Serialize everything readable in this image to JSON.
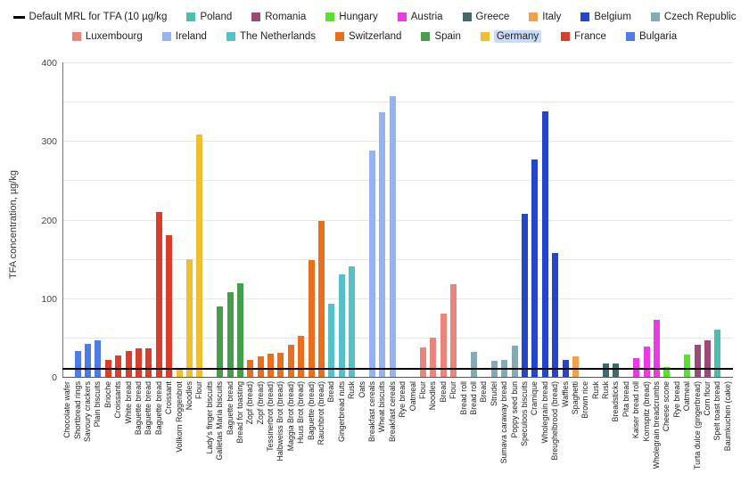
{
  "chart_data": {
    "type": "bar",
    "title": "",
    "xlabel": "",
    "ylabel": "TFA concentration, µg/kg",
    "ylim": [
      0,
      400
    ],
    "yticks": [
      0,
      100,
      200,
      300,
      400
    ],
    "grid": "horizontal gridlines every 50 units",
    "legend_position": "top, two rows",
    "mrl_line": {
      "label": "Default MRL for TFA (10 µg/kg",
      "value": 10,
      "color": "#000000"
    },
    "highlighted_legend_item": "Germany",
    "legend_row1": [
      "Poland",
      "Romania",
      "Hungary",
      "Austria",
      "Greece",
      "Italy",
      "Belgium",
      "Czech Republic"
    ],
    "legend_row2": [
      "Luxembourg",
      "Ireland",
      "The Netherlands",
      "Switzerland",
      "Spain",
      "Germany",
      "France",
      "Bulgaria"
    ],
    "colors": {
      "Poland": "#4dbdb0",
      "Romania": "#9b4a77",
      "Hungary": "#57e22f",
      "Austria": "#ea3ae2",
      "Greece": "#3f6b6d",
      "Italy": "#f0a04e",
      "Belgium": "#2545cb",
      "Czech Republic": "#86aab3",
      "Luxembourg": "#e9857b",
      "Ireland": "#93b3f1",
      "The Netherlands": "#55c1c7",
      "Switzerland": "#e96f1d",
      "Spain": "#469e4b",
      "Germany": "#efbf30",
      "France": "#d93d2c",
      "Bulgaria": "#4d7ce9"
    },
    "points": [
      {
        "label": "Chocolate wafer",
        "country": null,
        "value": 0
      },
      {
        "label": "Shortbread rings",
        "country": "Bulgaria",
        "value": 33
      },
      {
        "label": "Savoury crackers",
        "country": "Bulgaria",
        "value": 42
      },
      {
        "label": "Plain biscuits",
        "country": "Bulgaria",
        "value": 46
      },
      {
        "label": "Brioche",
        "country": "France",
        "value": 22
      },
      {
        "label": "Croissants",
        "country": "France",
        "value": 27
      },
      {
        "label": "White bread",
        "country": "France",
        "value": 33
      },
      {
        "label": "Baguette bread",
        "country": "France",
        "value": 36
      },
      {
        "label": "Baguette bread",
        "country": "France",
        "value": 36
      },
      {
        "label": "Baguette bread",
        "country": "France",
        "value": 210
      },
      {
        "label": "Croissant",
        "country": "France",
        "value": 180
      },
      {
        "label": "Vollkorn Roggenbrot",
        "country": "Germany",
        "value": 10
      },
      {
        "label": "Noodles",
        "country": "Germany",
        "value": 150
      },
      {
        "label": "Flour",
        "country": "Germany",
        "value": 308
      },
      {
        "label": "Lady's finger biscuits",
        "country": null,
        "value": 0
      },
      {
        "label": "Galletas Maria biscuits",
        "country": "Spain",
        "value": 90
      },
      {
        "label": "Baguette bread",
        "country": "Spain",
        "value": 108
      },
      {
        "label": "Bread for toasting",
        "country": "Spain",
        "value": 119
      },
      {
        "label": "Zopf (bread)",
        "country": "Switzerland",
        "value": 22
      },
      {
        "label": "Zopf (bread)",
        "country": "Switzerland",
        "value": 26
      },
      {
        "label": "Tessinerbrot (bread)",
        "country": "Switzerland",
        "value": 29
      },
      {
        "label": "Halbweiss Brot (bread)",
        "country": "Switzerland",
        "value": 31
      },
      {
        "label": "Maggia Brot (bread)",
        "country": "Switzerland",
        "value": 41
      },
      {
        "label": "Huus Brot (bread)",
        "country": "Switzerland",
        "value": 52
      },
      {
        "label": "Baguette (bread)",
        "country": "Switzerland",
        "value": 149
      },
      {
        "label": "Rauchbrot (bread)",
        "country": "Switzerland",
        "value": 198
      },
      {
        "label": "Bread",
        "country": "The Netherlands",
        "value": 93
      },
      {
        "label": "Gingerbread nuts",
        "country": "The Netherlands",
        "value": 130
      },
      {
        "label": "Rusk",
        "country": "The Netherlands",
        "value": 140
      },
      {
        "label": "Oats",
        "country": null,
        "value": 0
      },
      {
        "label": "Breakfast cereals",
        "country": "Ireland",
        "value": 288
      },
      {
        "label": "Wheat biscuits",
        "country": "Ireland",
        "value": 337
      },
      {
        "label": "Breakfast cereals",
        "country": "Ireland",
        "value": 357
      },
      {
        "label": "Rye bread",
        "country": null,
        "value": 0
      },
      {
        "label": "Oatmeal",
        "country": null,
        "value": 0
      },
      {
        "label": "Flour",
        "country": "Luxembourg",
        "value": 37
      },
      {
        "label": "Noodles",
        "country": "Luxembourg",
        "value": 50
      },
      {
        "label": "Bread",
        "country": "Luxembourg",
        "value": 81
      },
      {
        "label": "Flour",
        "country": "Luxembourg",
        "value": 118
      },
      {
        "label": "Bread roll",
        "country": null,
        "value": 0
      },
      {
        "label": "Bread roll",
        "country": "Czech Republic",
        "value": 32
      },
      {
        "label": "Bread",
        "country": null,
        "value": 0
      },
      {
        "label": "Strudel",
        "country": "Czech Republic",
        "value": 20
      },
      {
        "label": "Sumava caraway bread",
        "country": "Czech Republic",
        "value": 21
      },
      {
        "label": "Poppy seed bun",
        "country": "Czech Republic",
        "value": 40
      },
      {
        "label": "Speculoos biscuits",
        "country": "Belgium",
        "value": 207
      },
      {
        "label": "Cramique",
        "country": "Belgium",
        "value": 277
      },
      {
        "label": "Wholegrain bread",
        "country": "Belgium",
        "value": 338
      },
      {
        "label": "Breughelbrood (bread)",
        "country": "Belgium",
        "value": 158
      },
      {
        "label": "Waffles",
        "country": "Belgium",
        "value": 22
      },
      {
        "label": "Spaghetti",
        "country": "Italy",
        "value": 26
      },
      {
        "label": "Brown rice",
        "country": null,
        "value": 0
      },
      {
        "label": "Rusk",
        "country": null,
        "value": 0
      },
      {
        "label": "Rusk",
        "country": "Greece",
        "value": 17
      },
      {
        "label": "Breadsticks",
        "country": "Greece",
        "value": 17
      },
      {
        "label": "Pita bread",
        "country": null,
        "value": 0
      },
      {
        "label": "Kaiser bread roll",
        "country": "Austria",
        "value": 24
      },
      {
        "label": "Kornspitz (bread)",
        "country": "Austria",
        "value": 38
      },
      {
        "label": "Wholegrain breadcrumbs",
        "country": "Austria",
        "value": 73
      },
      {
        "label": "Cheese scone",
        "country": "Hungary",
        "value": 13
      },
      {
        "label": "Rye bread",
        "country": null,
        "value": 0
      },
      {
        "label": "Oatmeal",
        "country": "Hungary",
        "value": 28
      },
      {
        "label": "Turta dulce (gingerbread)",
        "country": "Romania",
        "value": 41
      },
      {
        "label": "Corn flour",
        "country": "Romania",
        "value": 46
      },
      {
        "label": "Spelt toast bread",
        "country": "Poland",
        "value": 60
      },
      {
        "label": "Baumkuchen (cake)",
        "country": null,
        "value": 0
      }
    ]
  }
}
